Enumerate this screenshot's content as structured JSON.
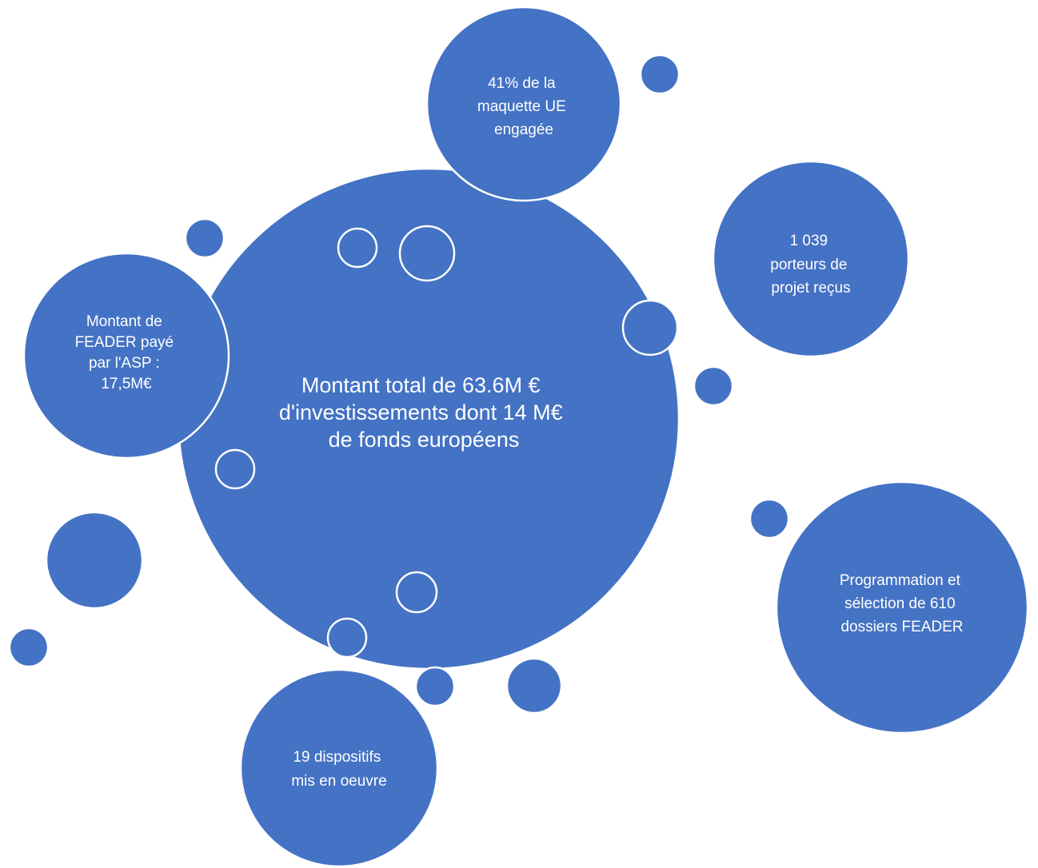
{
  "diagram": {
    "fill_color": "#4472C4",
    "outline_color": "#FFFFFF",
    "text_color": "#FFFFFF",
    "central": {
      "lines": [
        "Montant total de 63.6M €",
        "d'investissements dont 14 M€",
        "de fonds européens"
      ]
    },
    "bubbles": [
      {
        "id": "maquette",
        "lines": [
          "41% de la",
          "maquette UE",
          "engagée"
        ]
      },
      {
        "id": "porteurs",
        "lines": [
          "1 039",
          "porteurs de",
          "projet reçus"
        ]
      },
      {
        "id": "feader-paye",
        "lines": [
          "Montant de",
          "FEADER payé",
          "par l'ASP :",
          "17,5M€"
        ]
      },
      {
        "id": "programmation",
        "lines": [
          "Programmation et",
          "sélection de  610",
          "dossiers FEADER"
        ]
      },
      {
        "id": "dispositifs",
        "lines": [
          "19 dispositifs",
          "mis en oeuvre"
        ]
      }
    ]
  }
}
